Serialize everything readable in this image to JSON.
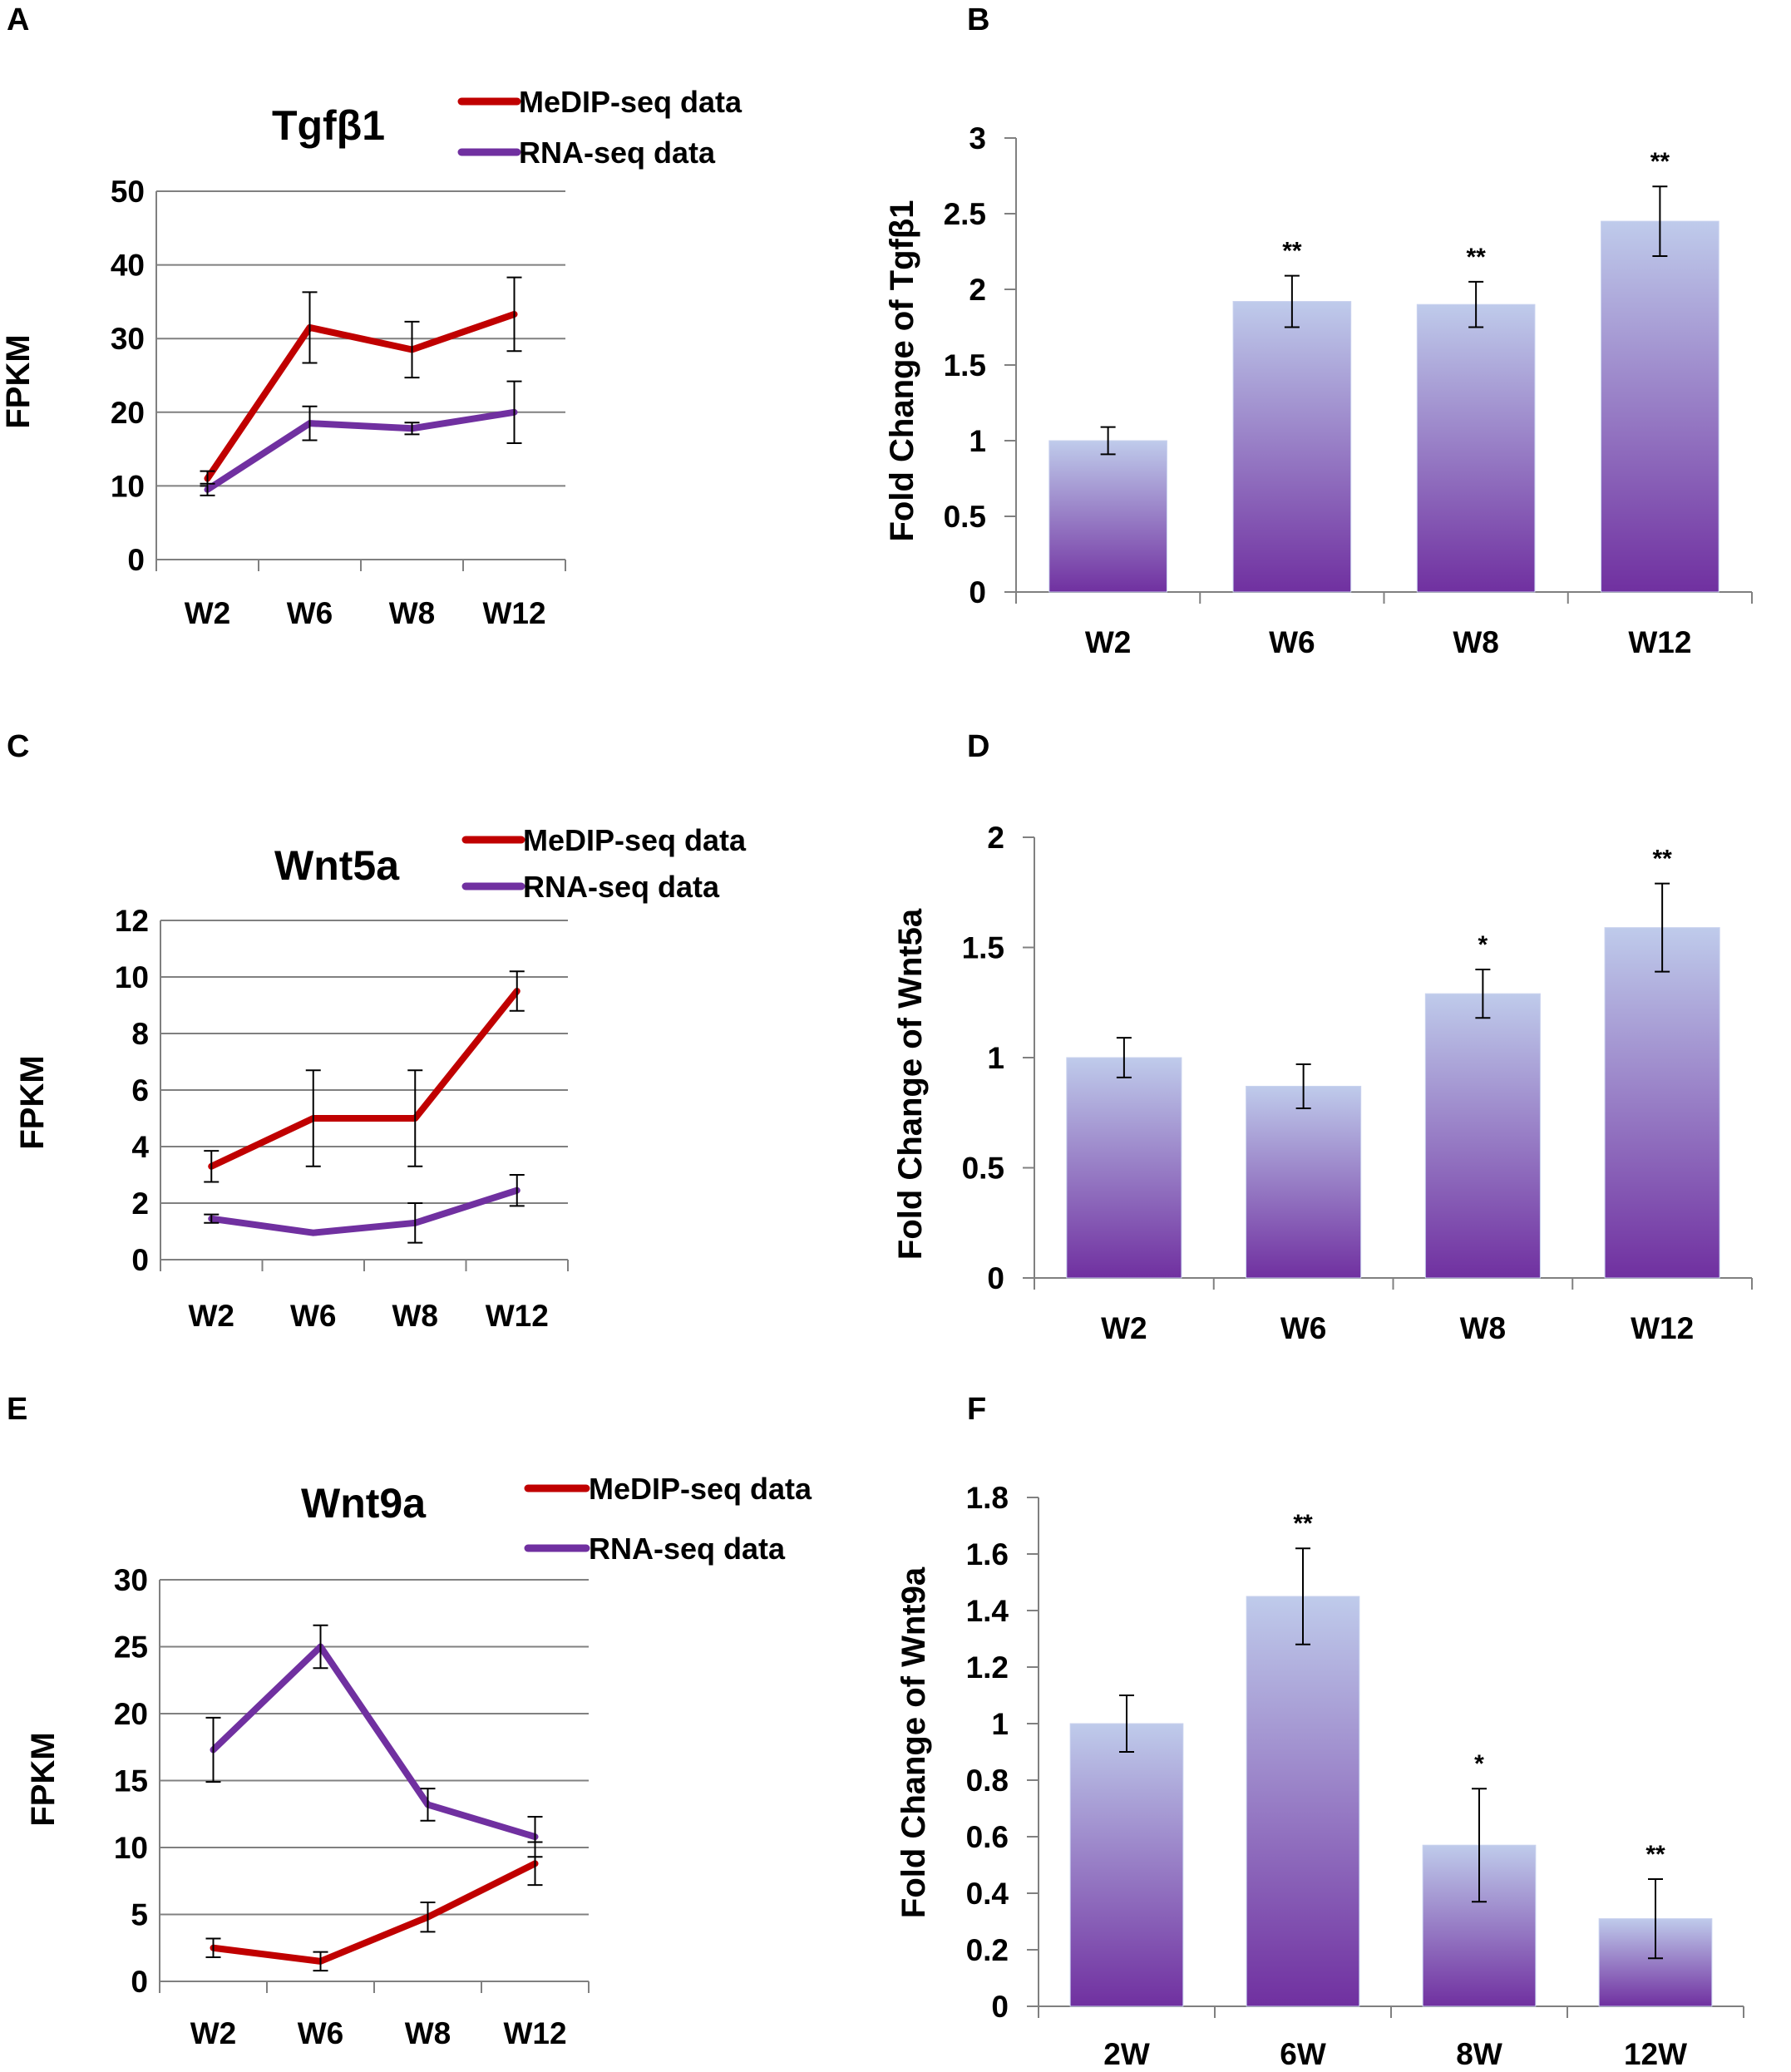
{
  "colors": {
    "medip": "#c00000",
    "rna": "#7030a0",
    "gridline": "#808080",
    "axis": "#808080",
    "bar_top": "#bfcbeb",
    "bar_bottom": "#7030a0",
    "error_bar": "#000000"
  },
  "chart_data": [
    {
      "panel": "A",
      "type": "line",
      "title": "Tgfβ1",
      "xlabel": "",
      "ylabel": "FPKM",
      "categories": [
        "W2",
        "W6",
        "W8",
        "W12"
      ],
      "ylim": [
        0,
        50
      ],
      "yticks": [
        0,
        10,
        20,
        30,
        40,
        50
      ],
      "grid": true,
      "legend_position": "top-right",
      "series": [
        {
          "name": "MeDIP-seq data",
          "color": "#c00000",
          "values": [
            11,
            31.5,
            28.5,
            33.3
          ],
          "errors": [
            1,
            4.8,
            3.8,
            5
          ]
        },
        {
          "name": "RNA-seq data",
          "color": "#7030a0",
          "values": [
            9.5,
            18.5,
            17.8,
            20
          ],
          "errors": [
            0.8,
            2.3,
            0.8,
            4.2
          ]
        }
      ]
    },
    {
      "panel": "B",
      "type": "bar",
      "title": "",
      "xlabel": "",
      "ylabel": "Fold Change of Tgfβ1",
      "categories": [
        "W2",
        "W6",
        "W8",
        "W12"
      ],
      "values": [
        1.0,
        1.92,
        1.9,
        2.45
      ],
      "errors": [
        0.09,
        0.17,
        0.15,
        0.23
      ],
      "significance": [
        "",
        "**",
        "**",
        "**"
      ],
      "ylim": [
        0,
        3
      ],
      "yticks": [
        "0",
        "0.5",
        "1",
        "1.5",
        "2",
        "2.5",
        "3"
      ],
      "grid": false
    },
    {
      "panel": "C",
      "type": "line",
      "title": "Wnt5a",
      "xlabel": "",
      "ylabel": "FPKM",
      "categories": [
        "W2",
        "W6",
        "W8",
        "W12"
      ],
      "ylim": [
        0,
        12
      ],
      "yticks": [
        0,
        2,
        4,
        6,
        8,
        10,
        12
      ],
      "grid": true,
      "legend_position": "top-right",
      "series": [
        {
          "name": "MeDIP-seq data",
          "color": "#c00000",
          "values": [
            3.3,
            5.0,
            5.0,
            9.5
          ],
          "errors": [
            0.55,
            1.7,
            1.7,
            0.7
          ]
        },
        {
          "name": "RNA-seq data",
          "color": "#7030a0",
          "values": [
            1.45,
            0.95,
            1.3,
            2.45
          ],
          "errors": [
            0.15,
            0,
            0.7,
            0.55
          ]
        }
      ]
    },
    {
      "panel": "D",
      "type": "bar",
      "title": "",
      "xlabel": "",
      "ylabel": "Fold Change of Wnt5a",
      "categories": [
        "W2",
        "W6",
        "W8",
        "W12"
      ],
      "values": [
        1.0,
        0.87,
        1.29,
        1.59
      ],
      "errors": [
        0.09,
        0.1,
        0.11,
        0.2
      ],
      "significance": [
        "",
        "",
        "*",
        "**"
      ],
      "ylim": [
        0,
        2
      ],
      "yticks": [
        "0",
        "0.5",
        "1",
        "1.5",
        "2"
      ],
      "grid": false
    },
    {
      "panel": "E",
      "type": "line",
      "title": "Wnt9a",
      "xlabel": "",
      "ylabel": "FPKM",
      "categories": [
        "W2",
        "W6",
        "W8",
        "W12"
      ],
      "ylim": [
        0,
        30
      ],
      "yticks": [
        0,
        5,
        10,
        15,
        20,
        25,
        30
      ],
      "grid": true,
      "legend_position": "top-right",
      "series": [
        {
          "name": "MeDIP-seq data",
          "color": "#c00000",
          "values": [
            2.5,
            1.5,
            4.8,
            8.8
          ],
          "errors": [
            0.7,
            0.7,
            1.1,
            1.6
          ]
        },
        {
          "name": "RNA-seq data",
          "color": "#7030a0",
          "values": [
            17.3,
            25.0,
            13.2,
            10.8
          ],
          "errors": [
            2.4,
            1.6,
            1.2,
            1.5
          ]
        }
      ]
    },
    {
      "panel": "F",
      "type": "bar",
      "title": "",
      "xlabel": "",
      "ylabel": "Fold Change of Wnt9a",
      "categories": [
        "2W",
        "6W",
        "8W",
        "12W"
      ],
      "values": [
        1.0,
        1.45,
        0.57,
        0.31
      ],
      "errors": [
        0.1,
        0.17,
        0.2,
        0.14
      ],
      "significance": [
        "",
        "**",
        "*",
        "**"
      ],
      "ylim": [
        0,
        1.8
      ],
      "yticks": [
        "0",
        "0.2",
        "0.4",
        "0.6",
        "0.8",
        "1",
        "1.2",
        "1.4",
        "1.6",
        "1.8"
      ],
      "grid": false
    }
  ]
}
